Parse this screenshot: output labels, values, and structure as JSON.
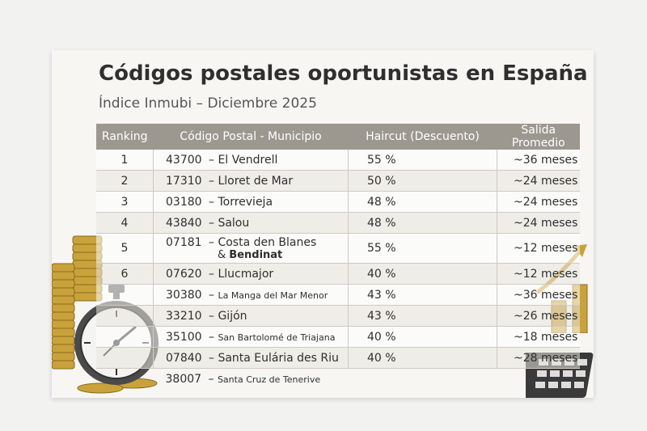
{
  "title": "Códigos postales oportunistas en España",
  "subtitle": "Índice Inmubi – Diciembre 2025",
  "headers": [
    "Ranking",
    "Código Postal - Municipio",
    "Haircut (Descuento)",
    "Salida Promedio"
  ],
  "rows": [
    {
      "rank": "1",
      "code": "43700",
      "sep": "–",
      "municipio": "El Vendrell",
      "haircut": "55 %",
      "salida": "~36 meses"
    },
    {
      "rank": "2",
      "code": "17310",
      "sep": "–",
      "municipio": "Lloret de Mar",
      "haircut": "50 %",
      "salida": "~24 meses"
    },
    {
      "rank": "3",
      "code": "03180",
      "sep": "–",
      "municipio": "Torrevieja",
      "haircut": "48 %",
      "salida": "~24 meses"
    },
    {
      "rank": "4",
      "code": "43840",
      "sep": "–",
      "municipio": "Salou",
      "haircut": "48 %",
      "salida": "~24 meses"
    },
    {
      "rank": "5",
      "code": "07181",
      "sep": "–",
      "municipio": "Costa den Blanes",
      "municipio_line2_prefix": "&",
      "municipio_line2": "Bendinat",
      "haircut": "55 %",
      "salida": "~12 meses"
    },
    {
      "rank": "6",
      "code": "07620",
      "sep": "–",
      "municipio": "Llucmajor",
      "haircut": "40 %",
      "salida": "~12 meses"
    },
    {
      "rank": "",
      "code": "30380",
      "sep": "–",
      "municipio": "La Manga del Mar Menor",
      "haircut": "43 %",
      "salida": "~36 meses"
    },
    {
      "rank": "",
      "code": "33210",
      "sep": "–",
      "municipio": "Gijón",
      "haircut": "43 %",
      "salida": "~26 meses"
    },
    {
      "rank": "",
      "code": "35100",
      "sep": "–",
      "municipio": "San Bartolomé de Triajana",
      "haircut": "40 %",
      "salida": "~18 meses"
    },
    {
      "rank": "",
      "code": "07840",
      "sep": "–",
      "municipio": "Santa Eulária des Riu",
      "haircut": "40 %",
      "salida": "~28 meses"
    },
    {
      "rank": "",
      "code": "38007",
      "sep": "–",
      "municipio": "Santa Cruz de Tenerive",
      "haircut": "",
      "salida": ""
    }
  ],
  "decorations": {
    "coins": "coin-stack",
    "stopwatch": "stopwatch",
    "chart": "bar-chart-growth",
    "calculator": "calculator"
  }
}
